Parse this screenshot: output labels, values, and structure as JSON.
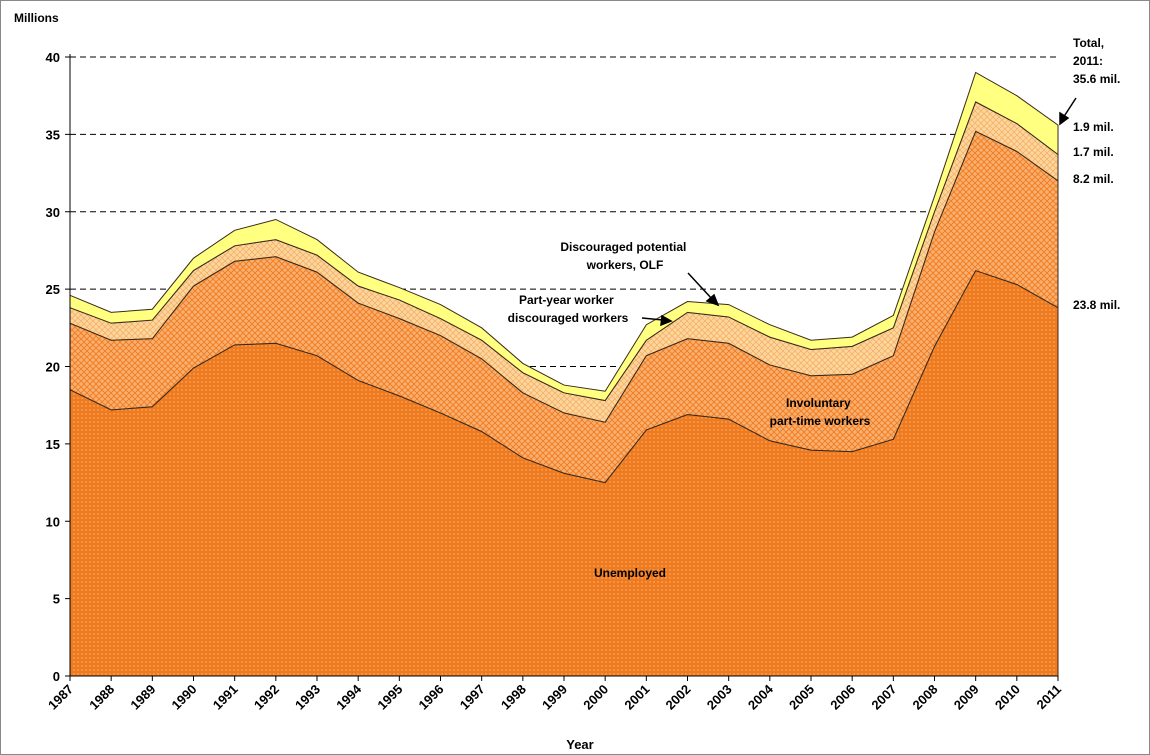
{
  "chart_data": {
    "type": "stacked_area",
    "y_label": "Millions",
    "x_label": "Year",
    "categories": [
      "1987",
      "1988",
      "1989",
      "1990",
      "1991",
      "1992",
      "1993",
      "1994",
      "1995",
      "1996",
      "1997",
      "1998",
      "1999",
      "2000",
      "2001",
      "2002",
      "2003",
      "2004",
      "2005",
      "2006",
      "2007",
      "2008",
      "2009",
      "2010",
      "2011"
    ],
    "series": [
      {
        "name": "Unemployed",
        "color": "#f07a1e",
        "values": [
          18.5,
          17.2,
          17.4,
          19.9,
          21.4,
          21.5,
          20.7,
          19.1,
          18.1,
          17.0,
          15.8,
          14.1,
          13.1,
          12.5,
          15.9,
          16.9,
          16.6,
          15.2,
          14.6,
          14.5,
          15.3,
          21.3,
          26.2,
          25.3,
          23.8
        ]
      },
      {
        "name": "Involuntary part-time workers",
        "color": "#f8ae6c",
        "values": [
          4.3,
          4.5,
          4.4,
          5.3,
          5.4,
          5.6,
          5.4,
          5.0,
          5.0,
          5.0,
          4.7,
          4.2,
          3.9,
          3.9,
          4.8,
          4.9,
          4.9,
          4.9,
          4.8,
          5.0,
          5.4,
          7.4,
          9.0,
          8.6,
          8.2
        ]
      },
      {
        "name": "Part-year worker discouraged workers",
        "color": "#fcd59a",
        "values": [
          1.0,
          1.1,
          1.2,
          1.0,
          1.0,
          1.1,
          1.1,
          1.1,
          1.2,
          1.1,
          1.2,
          1.3,
          1.3,
          1.4,
          1.0,
          1.7,
          1.7,
          1.8,
          1.7,
          1.8,
          1.8,
          1.3,
          1.9,
          1.8,
          1.7
        ]
      },
      {
        "name": "Discouraged potential workers, OLF",
        "color": "#ffff80",
        "values": [
          0.8,
          0.7,
          0.7,
          0.8,
          1.0,
          1.3,
          1.0,
          0.9,
          0.8,
          0.9,
          0.8,
          0.6,
          0.5,
          0.6,
          1.0,
          0.7,
          0.8,
          0.8,
          0.6,
          0.6,
          0.8,
          1.0,
          1.9,
          1.8,
          1.9
        ]
      }
    ],
    "ylim": [
      0,
      40
    ],
    "yticks": [
      0,
      5,
      10,
      15,
      20,
      25,
      30,
      35,
      40
    ],
    "grid": true,
    "annotations": [
      "Total,",
      "2011:",
      "35.6 mil.",
      "1.9 mil.",
      "1.7 mil.",
      "8.2 mil.",
      "23.8 mil."
    ]
  }
}
